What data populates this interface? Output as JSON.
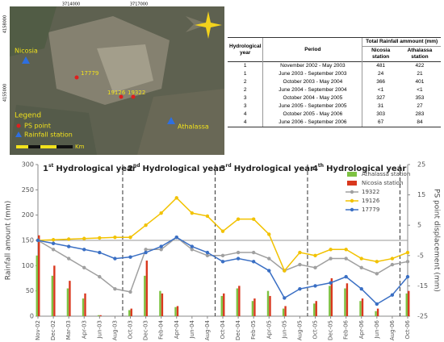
{
  "map": {
    "x_coords": [
      "3714000",
      "3717000"
    ],
    "y_coords": [
      "4158000",
      "4155000"
    ],
    "stations": [
      "Nicosia",
      "Athalassa"
    ],
    "ps_points": [
      "17779",
      "19126",
      "19322"
    ],
    "legend": {
      "title": "Legend",
      "items": [
        "PS point",
        "Rainfall station"
      ]
    },
    "scale_unit": "Km"
  },
  "table": {
    "headers": {
      "year": "Hydrological year",
      "period": "Period",
      "total": "Total Rainfall ammount (mm)",
      "nicosia": "Nicosia station",
      "athalassa": "Athalassa station"
    },
    "rows": [
      [
        1,
        "November 2002 - May 2003",
        481,
        422
      ],
      [
        1,
        "June 2003 - September 2003",
        24,
        21
      ],
      [
        2,
        "October 2003 - May 2004",
        366,
        401
      ],
      [
        2,
        "June 2004 - September 2004",
        "<1",
        "<1"
      ],
      [
        3,
        "October 2004 - May 2005",
        327,
        353
      ],
      [
        3,
        "June 2005 - September 2005",
        31,
        27
      ],
      [
        4,
        "October 2005 - May 2006",
        303,
        283
      ],
      [
        4,
        "June 2006 - September 2006",
        67,
        84
      ]
    ]
  },
  "chart_data": {
    "type": "combo",
    "ylabel": "Rainfall amount (mm)",
    "y2label": "PS point displacement (mm)",
    "annotations": [
      {
        "number": "1",
        "suffix": "st",
        "text": "Hydrological year"
      },
      {
        "number": "2",
        "suffix": "nd",
        "text": "Hydrological year"
      },
      {
        "number": "3",
        "suffix": "rd",
        "text": "Hydrological year"
      },
      {
        "number": "4",
        "suffix": "th",
        "text": "Hydrological year"
      }
    ],
    "categories": [
      "Nov-02",
      "Dec-02",
      "Mar-03",
      "Apr-03",
      "Jun-03",
      "Aug-03",
      "Oct-03",
      "Dec-03",
      "Feb-04",
      "Apr-04",
      "Jun-04",
      "Aug-04",
      "Oct-04",
      "Dec-04",
      "Feb-05",
      "Apr-05",
      "Jun-05",
      "Aug-05",
      "Oct-05",
      "Dec-05",
      "Feb-06",
      "Apr-06",
      "Jun-06",
      "Aug-06",
      "Oct-06"
    ],
    "ylim": [
      0,
      300
    ],
    "yticks": [
      0,
      50,
      100,
      150,
      200,
      250,
      300
    ],
    "y2lim": [
      -25,
      25
    ],
    "y2ticks": [
      -25,
      -15,
      -5,
      5,
      15,
      25
    ],
    "legend": "upper right",
    "series": [
      {
        "name": "Athalassa station",
        "type": "bar",
        "color": "#7dc242",
        "values": [
          120,
          80,
          55,
          35,
          2,
          0,
          12,
          80,
          50,
          18,
          0,
          0,
          40,
          55,
          30,
          50,
          15,
          0,
          25,
          60,
          55,
          30,
          10,
          0,
          45
        ]
      },
      {
        "name": "Nicosia station",
        "type": "bar",
        "color": "#d9381e",
        "values": [
          160,
          100,
          70,
          45,
          2,
          0,
          15,
          110,
          45,
          20,
          0,
          0,
          45,
          60,
          35,
          40,
          20,
          0,
          30,
          75,
          65,
          35,
          15,
          0,
          50
        ]
      },
      {
        "name": "19322",
        "type": "line",
        "axis": "y2",
        "color": "#a0a0a0",
        "values": [
          0,
          -3,
          -6,
          -9,
          -12,
          -16,
          -17,
          -3,
          -3,
          1,
          -3,
          -5,
          -5,
          -4,
          -4,
          -6,
          -10,
          -8,
          -9,
          -6,
          -6,
          -9,
          -11,
          -8,
          -7
        ]
      },
      {
        "name": "19126",
        "type": "line",
        "axis": "y2",
        "color": "#f2c200",
        "values": [
          0,
          0.2,
          0.4,
          0.6,
          0.8,
          1,
          1,
          5,
          9,
          14,
          9,
          8,
          3,
          7,
          7,
          2,
          -10,
          -4,
          -5,
          -3,
          -3,
          -6,
          -7,
          -6,
          -4
        ]
      },
      {
        "name": "17779",
        "type": "line",
        "axis": "y2",
        "color": "#3a6fc4",
        "values": [
          0,
          -1,
          -2,
          -3,
          -4,
          -6,
          -5.5,
          -4,
          -2,
          1,
          -2,
          -4,
          -7,
          -6,
          -7,
          -10,
          -19,
          -16,
          -15,
          -14,
          -12,
          -16,
          -21,
          -18,
          -12
        ]
      }
    ]
  }
}
